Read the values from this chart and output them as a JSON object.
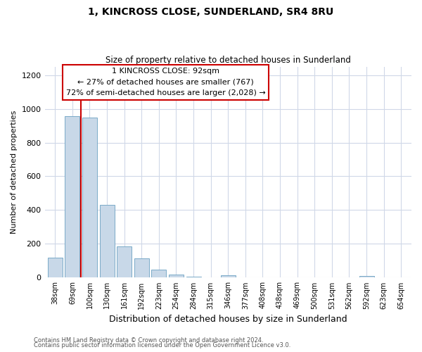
{
  "title": "1, KINCROSS CLOSE, SUNDERLAND, SR4 8RU",
  "subtitle": "Size of property relative to detached houses in Sunderland",
  "xlabel": "Distribution of detached houses by size in Sunderland",
  "ylabel": "Number of detached properties",
  "bar_labels": [
    "38sqm",
    "69sqm",
    "100sqm",
    "130sqm",
    "161sqm",
    "192sqm",
    "223sqm",
    "254sqm",
    "284sqm",
    "315sqm",
    "346sqm",
    "377sqm",
    "408sqm",
    "438sqm",
    "469sqm",
    "500sqm",
    "531sqm",
    "562sqm",
    "592sqm",
    "623sqm",
    "654sqm"
  ],
  "bar_values": [
    120,
    955,
    950,
    430,
    185,
    115,
    48,
    18,
    5,
    0,
    15,
    0,
    0,
    0,
    0,
    0,
    0,
    0,
    12,
    0,
    0
  ],
  "bar_color": "#c8d8e8",
  "bar_edge_color": "#7aaac8",
  "annotation_line1": "1 KINCROSS CLOSE: 92sqm",
  "annotation_line2": "← 27% of detached houses are smaller (767)",
  "annotation_line3": "72% of semi-detached houses are larger (2,028) →",
  "vline_color": "#cc0000",
  "annotation_box_edge": "#cc0000",
  "ylim": [
    0,
    1250
  ],
  "yticks": [
    0,
    200,
    400,
    600,
    800,
    1000,
    1200
  ],
  "footer_line1": "Contains HM Land Registry data © Crown copyright and database right 2024.",
  "footer_line2": "Contains public sector information licensed under the Open Government Licence v3.0.",
  "background_color": "#ffffff",
  "grid_color": "#d0d8e8"
}
